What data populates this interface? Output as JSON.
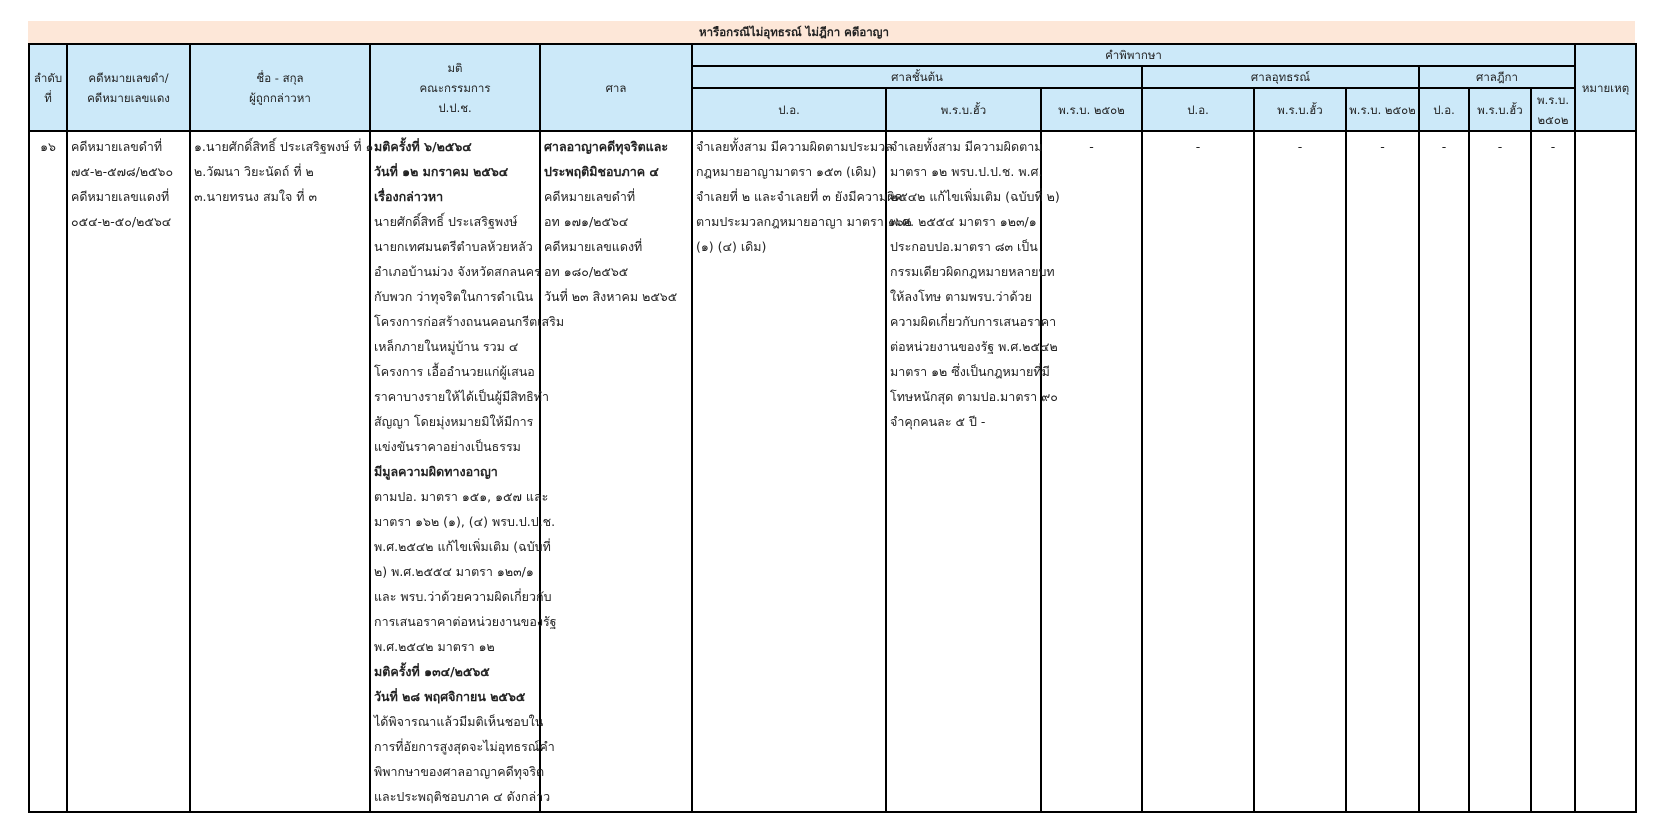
{
  "title": "หารือกรณีไม่อุทธรณ์ ไม่ฎีกา คดีอาญา",
  "headers": {
    "seq": [
      "ลำดับ",
      "ที่"
    ],
    "case_no": [
      "คดีหมายเลขดำ/",
      "คดีหมายเลขแดง"
    ],
    "name": [
      "ชื่อ - สกุล",
      "ผู้ถูกกล่าวหา"
    ],
    "resolution": [
      "มติ",
      "คณะกรรมการ",
      "ป.ป.ช."
    ],
    "court": "ศาล",
    "judgment": "คำพิพากษา",
    "court_first": "ศาลชั้นต้น",
    "court_appeal": "ศาลอุทธรณ์",
    "court_supreme": "ศาลฎีกา",
    "sub": [
      "ป.อ.",
      "พ.ร.บ.ฮั้ว",
      "พ.ร.บ. ๒๕๐๒",
      "ป.อ.",
      "พ.ร.บ.ฮั้ว",
      "พ.ร.บ. ๒๕๐๒",
      "ป.อ.",
      "พ.ร.บ.ฮั้ว"
    ],
    "sub_last": [
      "พ.ร.บ.",
      "๒๕๐๒"
    ],
    "remark": "หมายเหตุ"
  },
  "row": {
    "seq": "๑๖",
    "case_no": [
      "คดีหมายเลขดำที่",
      "๗๕-๒-๕๗๘/๒๕๖๐",
      "คดีหมายเลขแดงที่",
      "๐๕๔-๒-๕๐/๒๕๖๔"
    ],
    "names": [
      "๑.นายศักดิ์สิทธิ์  ประเสริฐพงษ์ ที่ ๑",
      "๒.วัฒนา วิยะนัดถ์ ที่ ๒",
      "๓.นายทรนง สมใจ ที่ ๓"
    ],
    "resolution": [
      {
        "t": "มติครั้งที่ ๖/๒๕๖๔",
        "b": true
      },
      {
        "t": "วันที่ ๑๒ มกราคม ๒๕๖๔",
        "b": true
      },
      {
        "t": "เรื่องกล่าวหา",
        "b": true
      },
      {
        "t": "นายศักดิ์สิทธิ์  ประเสริฐพงษ์"
      },
      {
        "t": "นายกเทศมนตรีตำบลห้วยหลัว"
      },
      {
        "t": "อำเภอบ้านม่วง จังหวัดสกลนคร"
      },
      {
        "t": "กับพวก ว่าทุจริตในการดำเนิน"
      },
      {
        "t": "โครงการก่อสร้างถนนคอนกรีตเสริม"
      },
      {
        "t": "เหล็กภายในหมู่บ้าน รวม ๔"
      },
      {
        "t": "โครงการ เอื้ออำนวยแก่ผู้เสนอ"
      },
      {
        "t": "ราคาบางรายให้ได้เป็นผู้มีสิทธิทำ"
      },
      {
        "t": "สัญญา โดยมุ่งหมายมิให้มีการ"
      },
      {
        "t": "แข่งขันราคาอย่างเป็นธรรม"
      },
      {
        "t": "มีมูลความผิดทางอาญา",
        "b": true
      },
      {
        "t": "ตามปอ. มาตรา ๑๕๑, ๑๕๗  และ"
      },
      {
        "t": "มาตรา ๑๖๒ (๑), (๔) พรบ.ป.ป.ช."
      },
      {
        "t": "พ.ศ.๒๕๔๒ แก้ไขเพิ่มเติม (ฉบับที่"
      },
      {
        "t": "๒) พ.ศ.๒๕๕๔ มาตรา ๑๒๓/๑"
      },
      {
        "t": "และ พรบ.ว่าด้วยความผิดเกี่ยวกับ"
      },
      {
        "t": "การเสนอราคาต่อหน่วยงานของรัฐ"
      },
      {
        "t": "พ.ศ.๒๕๔๒ มาตรา ๑๒"
      },
      {
        "t": "มติครั้งที่ ๑๓๔/๒๕๖๕",
        "b": true
      },
      {
        "t": "วันที่ ๒๘ พฤศจิกายน ๒๕๖๕",
        "b": true
      },
      {
        "t": "ได้พิจารณาแล้วมีมติเห็นชอบใน"
      },
      {
        "t": "การที่อัยการสูงสุดจะไม่อุทธรณ์คำ"
      },
      {
        "t": "พิพากษาของศาลอาญาคดีทุจริต"
      },
      {
        "t": "และประพฤติชอบภาค ๔ ดังกล่าว"
      }
    ],
    "court": [
      {
        "t": "ศาลอาญาคดีทุจริตและ",
        "b": true
      },
      {
        "t": "ประพฤติมิชอบภาค ๔",
        "b": true
      },
      {
        "t": "คดีหมายเลขดำที่"
      },
      {
        "t": "อท ๑๗๑/๒๕๖๔"
      },
      {
        "t": "คดีหมายเลขแดงที่"
      },
      {
        "t": "อท ๑๘๐/๒๕๖๕"
      },
      {
        "t": "วันที่ ๒๓ สิงหาคม ๒๕๖๕"
      }
    ],
    "first_criminal": [
      "จำเลยทั้งสาม มีความผิดตามประมวล",
      "กฎหมายอาญามาตรา ๑๕๓ (เดิม)",
      "จำเลยที่ ๒ และจำเลยที่ ๓ ยังมีความผิด",
      "ตามประมวลกฎหมายอาญา มาตรา ๑๖๒",
      " (๑) (๔) เดิม)"
    ],
    "first_bid": [
      "จำเลยทั้งสาม มีความผิดตาม",
      "มาตรา ๑๒ พรบ.ป.ป.ช. พ.ศ.",
      "๒๕๔๒ แก้ไขเพิ่มเติม (ฉบับที่ ๒)",
      " พ.ศ. ๒๕๕๔ มาตรา ๑๒๓/๑",
      "ประกอบปอ.มาตรา ๘๓ เป็น",
      "กรรมเดียวผิดกฎหมายหลายบท",
      " ให้ลงโทษ ตามพรบ.ว่าด้วย",
      "ความผิดเกี่ยวกับการเสนอราคา",
      "ต่อหน่วยงานของรัฐ พ.ศ.๒๕๔๒",
      " มาตรา ๑๒ ซึ่งเป็นกฎหมายที่มี",
      "โทษหนักสุด ตามปอ.มาตรา ๙๐",
      " จำคุกคนละ ๕ ปี -"
    ],
    "dash": "-"
  }
}
